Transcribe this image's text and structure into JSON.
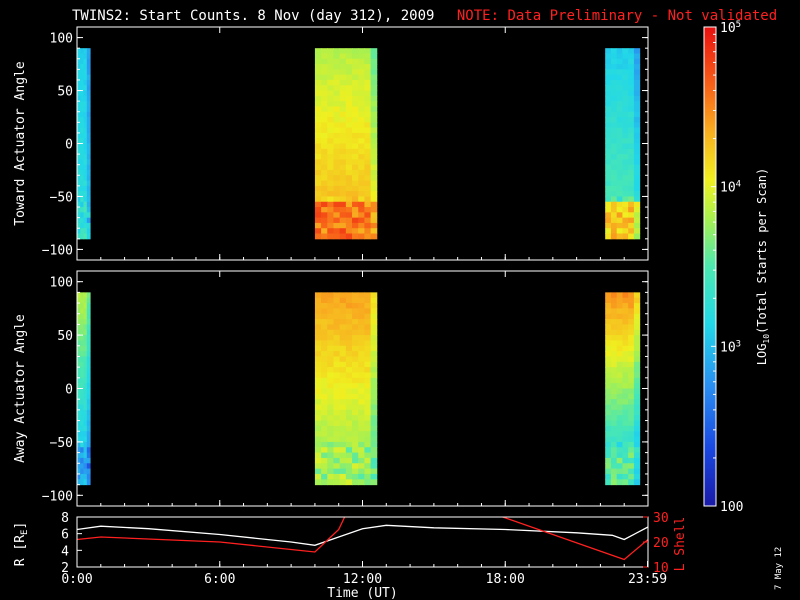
{
  "header": {
    "title": "TWINS2: Start Counts.  8 Nov (day 312), 2009",
    "note": "NOTE: Data Preliminary - Not validated"
  },
  "side_label": "7 May 12",
  "colors": {
    "background": "#000000",
    "axes": "#ffffff",
    "note": "#ff2020",
    "r_line": "#ffffff",
    "lshell_line": "#ff2020"
  },
  "chart_data": [
    {
      "type": "heatmap",
      "panel": "toward",
      "ylabel": "Toward Actuator Angle",
      "ylim": [
        -110,
        110
      ],
      "yticks": [
        -100,
        -50,
        0,
        50,
        100
      ],
      "xlim": [
        0,
        24
      ],
      "log_color_scale": true,
      "data_blocks": [
        {
          "t_start": 0.0,
          "t_end": 0.55,
          "level_top": 3.1,
          "level_bottom": 3.25,
          "low_band_level": 3.3
        },
        {
          "t_start": 10.0,
          "t_end": 12.6,
          "level_top": 3.85,
          "level_bottom": 4.35,
          "low_band_level": 4.55
        },
        {
          "t_start": 22.2,
          "t_end": 23.65,
          "level_top": 3.1,
          "level_bottom": 3.55,
          "low_band_level": 4.2
        }
      ]
    },
    {
      "type": "heatmap",
      "panel": "away",
      "ylabel": "Away Actuator Angle",
      "ylim": [
        -110,
        110
      ],
      "yticks": [
        -100,
        -50,
        0,
        50,
        100
      ],
      "xlim": [
        0,
        24
      ],
      "log_color_scale": true,
      "data_blocks": [
        {
          "t_start": 0.0,
          "t_end": 0.55,
          "level_top": 3.85,
          "level_bottom": 2.9,
          "low_band_level": 2.9
        },
        {
          "t_start": 10.0,
          "t_end": 12.6,
          "level_top": 4.4,
          "level_bottom": 3.65,
          "low_band_level": 3.75
        },
        {
          "t_start": 22.2,
          "t_end": 23.65,
          "level_top": 4.45,
          "level_bottom": 3.05,
          "low_band_level": 3.5
        }
      ]
    },
    {
      "type": "line",
      "panel": "orbit",
      "ylabel_left": "R [R_E]",
      "ylabel_right": "L Shell",
      "xlabel": "Time (UT)",
      "xlim": [
        0,
        24
      ],
      "xticks": [
        "0:00",
        "6:00",
        "12:00",
        "18:00",
        "23:59"
      ],
      "ylim_left": [
        2,
        8
      ],
      "yticks_left": [
        2,
        4,
        6,
        8
      ],
      "ylim_right": [
        10,
        30
      ],
      "yticks_right": [
        10,
        20,
        30
      ],
      "series": [
        {
          "axis": "left",
          "x": [
            0,
            1,
            3,
            6,
            9,
            10,
            11,
            12,
            13,
            15,
            18,
            21,
            22.5,
            23,
            24
          ],
          "y": [
            6.5,
            6.9,
            6.6,
            5.9,
            5.0,
            4.6,
            5.6,
            6.6,
            7.0,
            6.7,
            6.5,
            6.1,
            5.8,
            5.3,
            6.8
          ]
        },
        {
          "axis": "right",
          "x": [
            0,
            1,
            6,
            10,
            11,
            11.3
          ],
          "y": [
            21,
            22,
            20,
            16,
            25,
            31
          ]
        },
        {
          "axis": "right",
          "x": [
            17.6,
            23,
            24
          ],
          "y": [
            31,
            13,
            21
          ]
        }
      ]
    }
  ],
  "colorbar": {
    "label": "LOG10(Total Starts per Scan)",
    "label_base": "LOG",
    "label_sub": "10",
    "label_rest": "(Total Starts per Scan)",
    "range": [
      2,
      5
    ],
    "ticks": [
      {
        "value": 2,
        "base": "100",
        "exp": ""
      },
      {
        "value": 3,
        "base": "10",
        "exp": "3"
      },
      {
        "value": 4,
        "base": "10",
        "exp": "4"
      },
      {
        "value": 5,
        "base": "10",
        "exp": "5"
      }
    ]
  }
}
